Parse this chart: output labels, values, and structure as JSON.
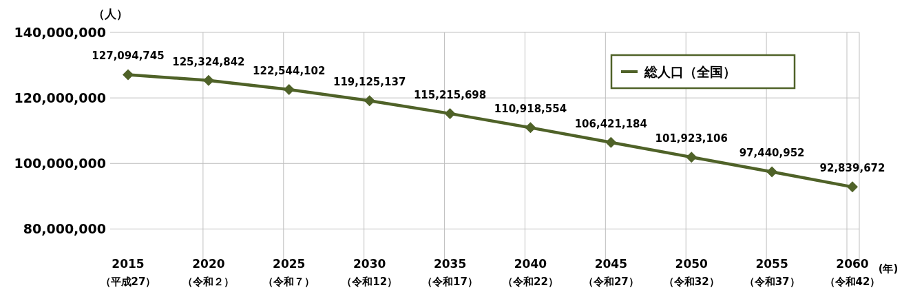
{
  "chart_data": {
    "type": "line",
    "ylabel": "（人）",
    "xlabel": "(年)",
    "categories": [
      "2015\n（平成27）",
      "2020\n（令和２）",
      "2025\n（令和７）",
      "2030\n（令和12）",
      "2035\n（令和17）",
      "2040\n（令和22）",
      "2045\n（令和27）",
      "2050\n（令和32）",
      "2055\n（令和37）",
      "2060\n（令和42）"
    ],
    "series": [
      {
        "name": "総人口（全国）",
        "color": "#4f6228",
        "values": [
          127094745,
          125324842,
          122544102,
          119125137,
          115215698,
          110918554,
          106421184,
          101923106,
          97440952,
          92839672
        ],
        "value_labels": [
          "127,094,745",
          "125,324,842",
          "122,544,102",
          "119,125,137",
          "115,215,698",
          "110,918,554",
          "106,421,184",
          "101,923,106",
          "97,440,952",
          "92,839,672"
        ]
      }
    ],
    "ylim": [
      70000000,
      140000000
    ],
    "yticks": [
      {
        "value": 80000000,
        "label": "80,000,000"
      },
      {
        "value": 100000000,
        "label": "100,000,000"
      },
      {
        "value": 120000000,
        "label": "120,000,000"
      },
      {
        "value": 140000000,
        "label": "140,000,000"
      }
    ],
    "grid": true,
    "legend": "top right",
    "marker": "diamond",
    "line_style": "solid"
  }
}
